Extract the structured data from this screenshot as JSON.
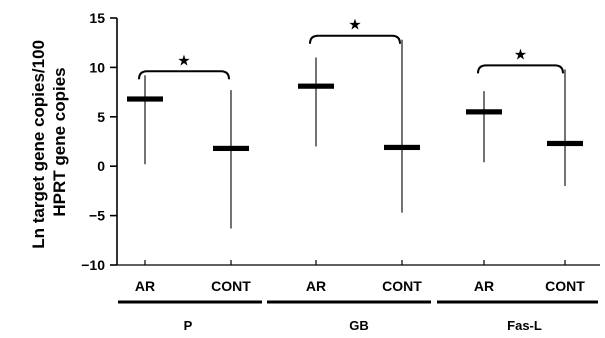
{
  "chart_data": {
    "type": "range",
    "ylabel_lines": [
      "Ln target gene copies/100",
      "HPRT gene copies"
    ],
    "ylim": [
      -10,
      15
    ],
    "yticks": [
      "15",
      "10",
      "5",
      "0",
      "−5",
      "−10"
    ],
    "ytick_values": [
      15,
      10,
      5,
      0,
      -5,
      -10
    ],
    "groups": [
      {
        "label": "P",
        "significance": "★",
        "items": [
          {
            "category": "AR",
            "median": 6.8,
            "min": 0.2,
            "max": 9.2
          },
          {
            "category": "CONT",
            "median": 1.8,
            "min": -6.3,
            "max": 7.7
          }
        ]
      },
      {
        "label": "GB",
        "significance": "★",
        "items": [
          {
            "category": "AR",
            "median": 8.1,
            "min": 2.0,
            "max": 11.0
          },
          {
            "category": "CONT",
            "median": 1.9,
            "min": -4.7,
            "max": 12.8
          }
        ]
      },
      {
        "label": "Fas-L",
        "significance": "★",
        "items": [
          {
            "category": "AR",
            "median": 5.5,
            "min": 0.4,
            "max": 7.6
          },
          {
            "category": "CONT",
            "median": 2.3,
            "min": -2.0,
            "max": 9.8
          }
        ]
      }
    ]
  }
}
